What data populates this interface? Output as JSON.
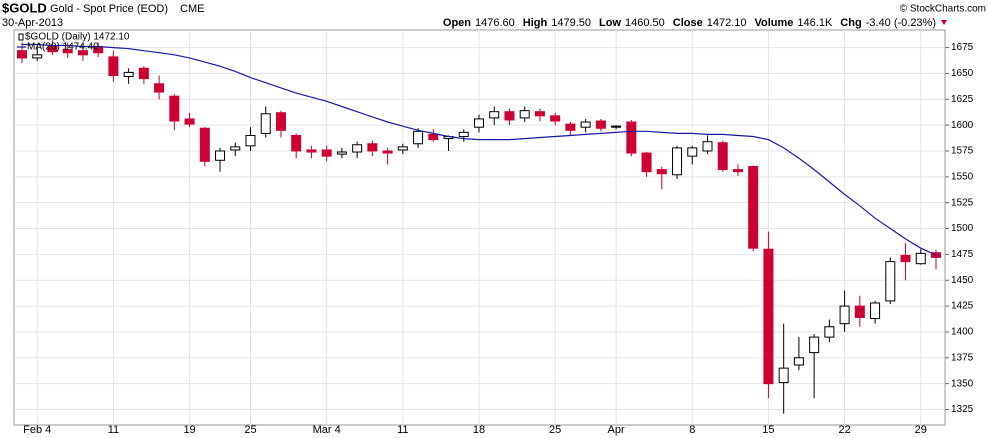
{
  "chart_data": {
    "type": "candlestick",
    "title": "$GOLD",
    "subtitle": "Gold - Spot Price (EOD)",
    "exchange": "CME",
    "date": "30-Apr-2013",
    "credit": "© StockCharts.com",
    "quote": [
      {
        "label": "Open",
        "value": "1476.60"
      },
      {
        "label": "High",
        "value": "1479.50"
      },
      {
        "label": "Low",
        "value": "1460.50"
      },
      {
        "label": "Close",
        "value": "1472.10"
      },
      {
        "label": "Volume",
        "value": "146.1K"
      },
      {
        "label": "Chg",
        "value": "-3.40 (-0.23%)"
      }
    ],
    "categories": [
      null,
      "Feb 4",
      null,
      null,
      null,
      null,
      "11",
      null,
      null,
      null,
      null,
      "19",
      null,
      null,
      null,
      "25",
      null,
      null,
      null,
      null,
      "Mar 4",
      null,
      null,
      null,
      null,
      "11",
      null,
      null,
      null,
      null,
      "18",
      null,
      null,
      null,
      null,
      "25",
      null,
      null,
      null,
      "Apr",
      null,
      null,
      null,
      null,
      "8",
      null,
      null,
      null,
      null,
      "15",
      null,
      null,
      null,
      null,
      "22",
      null,
      null,
      null,
      null,
      "29",
      null
    ],
    "ylim": [
      1310,
      1692
    ],
    "yticks": [
      1325,
      1350,
      1375,
      1400,
      1425,
      1450,
      1475,
      1500,
      1525,
      1550,
      1575,
      1600,
      1625,
      1650,
      1675
    ],
    "grid": true,
    "up_color": "#ffffff",
    "down_color": "#cc0033",
    "series": [
      {
        "name": "$GOLD (Daily) 1472.10",
        "color": "#000000",
        "open": [
          1672,
          1665,
          1676,
          1673,
          1672,
          1676,
          1666,
          1647,
          1655,
          1640,
          1628,
          1606,
          1597,
          1566,
          1576,
          1580,
          1592,
          1612,
          1590,
          1576,
          1576,
          1572,
          1574,
          1582,
          1575,
          1576,
          1582,
          1591,
          1587,
          1589,
          1598,
          1607,
          1613,
          1607,
          1613,
          1609,
          1601,
          1598,
          1604,
          1598,
          1603,
          1573,
          1557,
          1552,
          1570,
          1575,
          1583,
          1557,
          1560,
          1480,
          1351,
          1368,
          1380,
          1395,
          1408,
          1425,
          1413,
          1430,
          1474,
          1466,
          1476.6
        ],
        "high": [
          1680,
          1675,
          1682,
          1680,
          1678,
          1680,
          1672,
          1655,
          1657,
          1648,
          1630,
          1612,
          1598,
          1578,
          1583,
          1598,
          1618,
          1614,
          1592,
          1580,
          1580,
          1578,
          1584,
          1585,
          1578,
          1582,
          1597,
          1596,
          1590,
          1596,
          1610,
          1618,
          1616,
          1618,
          1616,
          1612,
          1603,
          1606,
          1606,
          1600,
          1605,
          1574,
          1560,
          1580,
          1580,
          1590,
          1585,
          1562,
          1561,
          1497,
          1408,
          1395,
          1398,
          1412,
          1440,
          1435,
          1430,
          1472,
          1486,
          1480,
          1479.5
        ],
        "low": [
          1660,
          1662,
          1668,
          1665,
          1662,
          1666,
          1642,
          1640,
          1640,
          1625,
          1595,
          1598,
          1560,
          1555,
          1570,
          1575,
          1588,
          1588,
          1568,
          1568,
          1565,
          1568,
          1568,
          1570,
          1562,
          1572,
          1578,
          1584,
          1575,
          1584,
          1593,
          1600,
          1600,
          1603,
          1604,
          1600,
          1590,
          1593,
          1594,
          1596,
          1570,
          1550,
          1538,
          1548,
          1562,
          1572,
          1555,
          1551,
          1478,
          1336,
          1321,
          1363,
          1336,
          1390,
          1400,
          1405,
          1408,
          1427,
          1450,
          1465,
          1460.5
        ],
        "close": [
          1665,
          1668,
          1671,
          1670,
          1668,
          1670,
          1648,
          1651,
          1645,
          1632,
          1604,
          1601,
          1565,
          1575,
          1579,
          1590,
          1611,
          1595,
          1575,
          1574,
          1570,
          1574,
          1581,
          1575,
          1573,
          1579,
          1594,
          1586,
          1589,
          1593,
          1606,
          1613,
          1605,
          1614,
          1609,
          1604,
          1595,
          1603,
          1597,
          1599,
          1573,
          1555,
          1553,
          1578,
          1578,
          1584,
          1557,
          1555,
          1481,
          1350,
          1365,
          1375,
          1395,
          1405,
          1425,
          1414,
          1428,
          1468,
          1468,
          1476,
          1472.1
        ]
      },
      {
        "name": "MA(20) 1474.40",
        "color": "#1a1aa6",
        "values": [
          1678,
          1678,
          1677,
          1677,
          1676,
          1676,
          1675,
          1674,
          1672,
          1670,
          1668,
          1665,
          1661,
          1657,
          1652,
          1646,
          1641,
          1636,
          1631,
          1627,
          1623,
          1618,
          1613,
          1608,
          1603,
          1599,
          1595,
          1592,
          1589,
          1587,
          1586,
          1586,
          1586,
          1587,
          1588,
          1589,
          1590,
          1591,
          1592,
          1593,
          1594,
          1594,
          1593,
          1592,
          1592,
          1591,
          1591,
          1590,
          1589,
          1586,
          1578,
          1568,
          1557,
          1545,
          1533,
          1522,
          1510,
          1500,
          1490,
          1481,
          1474.4
        ]
      }
    ]
  }
}
